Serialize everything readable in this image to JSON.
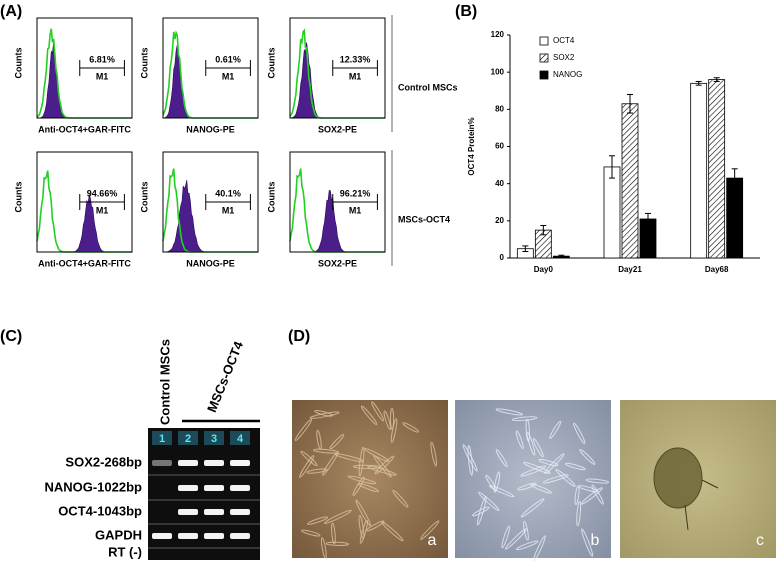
{
  "panel_labels": [
    "(A)",
    "(B)",
    "(C)",
    "(D)"
  ],
  "flow": {
    "row_labels": [
      "Control MSCs",
      "MSCs-OCT4"
    ],
    "plots": [
      {
        "y_label": "Counts",
        "x_label": "Anti-OCT4+GAR-FITC",
        "percent": "6.81%",
        "gate": "M1"
      },
      {
        "y_label": "Counts",
        "x_label": "NANOG-PE",
        "percent": "0.61%",
        "gate": "M1"
      },
      {
        "y_label": "Counts",
        "x_label": "SOX2-PE",
        "percent": "12.33%",
        "gate": "M1"
      },
      {
        "y_label": "Counts",
        "x_label": "Anti-OCT4+GAR-FITC",
        "percent": "94.66%",
        "gate": "M1"
      },
      {
        "y_label": "Counts",
        "x_label": "NANOG-PE",
        "percent": "40.1%",
        "gate": "M1"
      },
      {
        "y_label": "Counts",
        "x_label": "SOX2-PE",
        "percent": "96.21%",
        "gate": "M1"
      }
    ]
  },
  "chart_data": {
    "type": "bar",
    "y_label": "OCT4 Protein%",
    "categories": [
      "Day0",
      "Day21",
      "Day68"
    ],
    "series": [
      {
        "name": "OCT4",
        "color": "#ffffff",
        "values": [
          5,
          49,
          94
        ],
        "errors": [
          1.5,
          6,
          1
        ]
      },
      {
        "name": "SOX2",
        "color": "#ffffff",
        "hatch": true,
        "values": [
          15,
          83,
          96
        ],
        "errors": [
          2.5,
          5,
          1
        ]
      },
      {
        "name": "NANOG",
        "color": "#000000",
        "values": [
          1,
          21,
          43
        ],
        "errors": [
          0.5,
          3,
          5
        ]
      }
    ],
    "ylim": [
      0,
      120
    ],
    "yticks": [
      0,
      20,
      40,
      60,
      80,
      100,
      120
    ]
  },
  "gel": {
    "group_labels": [
      "Control MSCs",
      "MSCs-OCT4"
    ],
    "lanes": [
      "1",
      "2",
      "3",
      "4"
    ],
    "rows": [
      "SOX2-268bp",
      "NANOG-1022bp",
      "OCT4-1043bp",
      "GAPDH",
      "RT (-)"
    ]
  },
  "images": {
    "labels": [
      "a",
      "b",
      "c"
    ]
  }
}
